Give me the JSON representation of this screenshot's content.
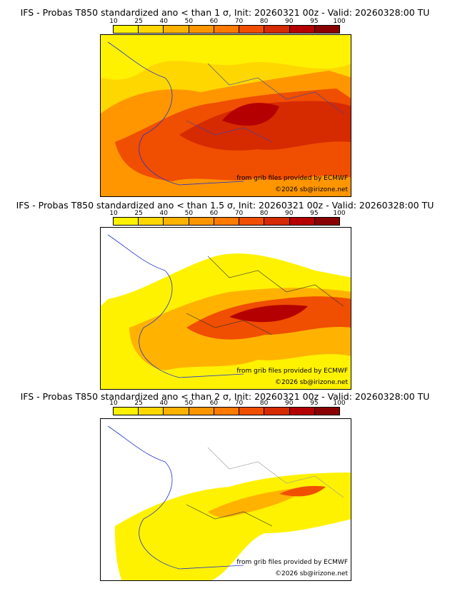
{
  "colorbar": {
    "ticks": [
      "10",
      "25",
      "40",
      "50",
      "60",
      "70",
      "80",
      "90",
      "95",
      "100"
    ],
    "colors": [
      "#fff200",
      "#ffd700",
      "#ffb300",
      "#ff9600",
      "#ff7a00",
      "#f04e00",
      "#d62a00",
      "#b40000",
      "#8a0000"
    ]
  },
  "panels": [
    {
      "title": "IFS - Probas T850  standardized ano < than 1 σ, Init: 20260321 00z - Valid: 20260328:00 TU",
      "credit_source": "from grib files provided by ECMWF",
      "credit_copyright": "©2026 sb@irizone.net"
    },
    {
      "title": "IFS - Probas T850  standardized ano < than 1.5 σ, Init: 20260321 00z - Valid: 20260328:00 TU",
      "credit_source": "from grib files provided by ECMWF",
      "credit_copyright": "©2026 sb@irizone.net"
    },
    {
      "title": "IFS - Probas T850  standardized ano < than 2 σ, Init: 20260321 00z - Valid: 20260328:00 TU",
      "credit_source": "from grib files provided by ECMWF",
      "credit_copyright": "©2026 sb@irizone.net"
    }
  ]
}
